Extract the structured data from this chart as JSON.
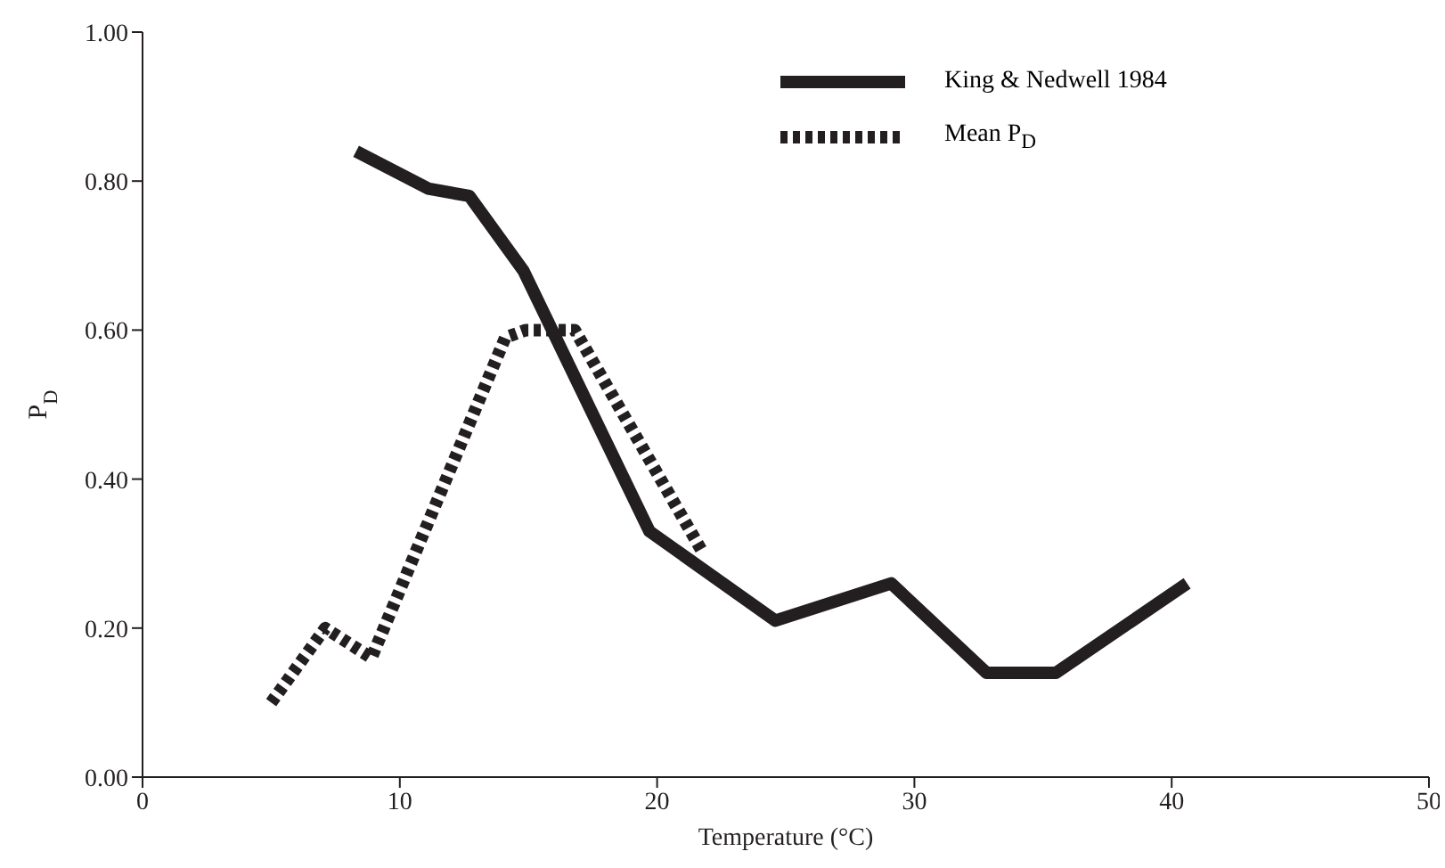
{
  "chart_data": {
    "type": "line",
    "xlabel": "Temperature (°C)",
    "ylabel": "P$_{D}$",
    "xlim": [
      0,
      50
    ],
    "xticks": [
      0,
      10,
      20,
      30,
      40,
      50
    ],
    "ylim": [
      0,
      1
    ],
    "yticks": [
      {
        "value": 0,
        "label": "0.00"
      },
      {
        "value": 0.2,
        "label": "0.20"
      },
      {
        "value": 0.4,
        "label": "0.40"
      },
      {
        "value": 0.6,
        "label": "0.60"
      },
      {
        "value": 0.8,
        "label": "0.80"
      },
      {
        "value": 1,
        "label": "1.00"
      }
    ],
    "grid": false,
    "legend": "top right",
    "marker": "none",
    "series": [
      {
        "name": "King & Nedwell 1984",
        "color": "#231f20",
        "line_style": "solid",
        "x": [
          8.3,
          11.1,
          12.7,
          14.8,
          19.7,
          24.6,
          29.1,
          32.8,
          35.5,
          40.6
        ],
        "values": [
          0.84,
          0.79,
          0.78,
          0.68,
          0.33,
          0.21,
          0.26,
          0.14,
          0.14,
          0.26
        ]
      },
      {
        "name": "Mean P$_{D}$",
        "color": "#231f20",
        "line_style": "dashed",
        "x": [
          5.0,
          7.1,
          8.9,
          14.1,
          14.9,
          16.8,
          21.8
        ],
        "values": [
          0.1,
          0.2,
          0.16,
          0.59,
          0.6,
          0.6,
          0.3
        ]
      }
    ]
  }
}
